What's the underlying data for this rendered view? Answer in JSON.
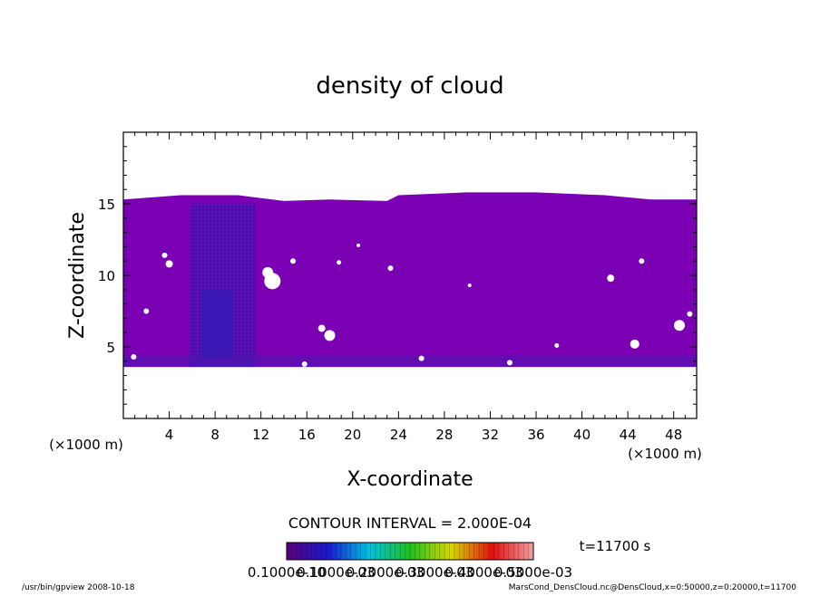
{
  "chart_data": {
    "type": "heatmap",
    "title": "density of cloud",
    "xlabel": "X-coordinate",
    "ylabel": "Z-coordinate",
    "x_unit": "(×1000 m)",
    "y_unit": "(×1000 m)",
    "xlim": [
      0,
      50
    ],
    "ylim": [
      0,
      20
    ],
    "x_ticks": [
      4,
      8,
      12,
      16,
      20,
      24,
      28,
      32,
      36,
      40,
      44,
      48
    ],
    "y_ticks": [
      5,
      10,
      15
    ],
    "cloud_layer": {
      "z_bottom": 3.6,
      "z_top": 15.2,
      "dominant_color": "#7b00b4",
      "dense_column": {
        "x_from": 5.8,
        "x_to": 11.5,
        "z_from": 3.6,
        "z_to": 15.0
      }
    },
    "contour_interval": "CONTOUR INTERVAL = 2.000E-04",
    "time_label": "t=11700 s",
    "colorbar": {
      "labels": [
        "0.1000e-10",
        "0.1000e-03",
        "0.2000e-03",
        "0.3000e-03",
        "0.4000e-03",
        "0.5000e-03"
      ],
      "colors": [
        "#5a007a",
        "#1a1acc",
        "#00c0e0",
        "#20c020",
        "#d8d800",
        "#e01010",
        "#f0a0a0"
      ]
    }
  },
  "footer": {
    "left": "/usr/bin/gpview   2008-10-18",
    "right": "MarsCond_DensCloud.nc@DensCloud,x=0:50000,z=0:20000,t=11700"
  }
}
